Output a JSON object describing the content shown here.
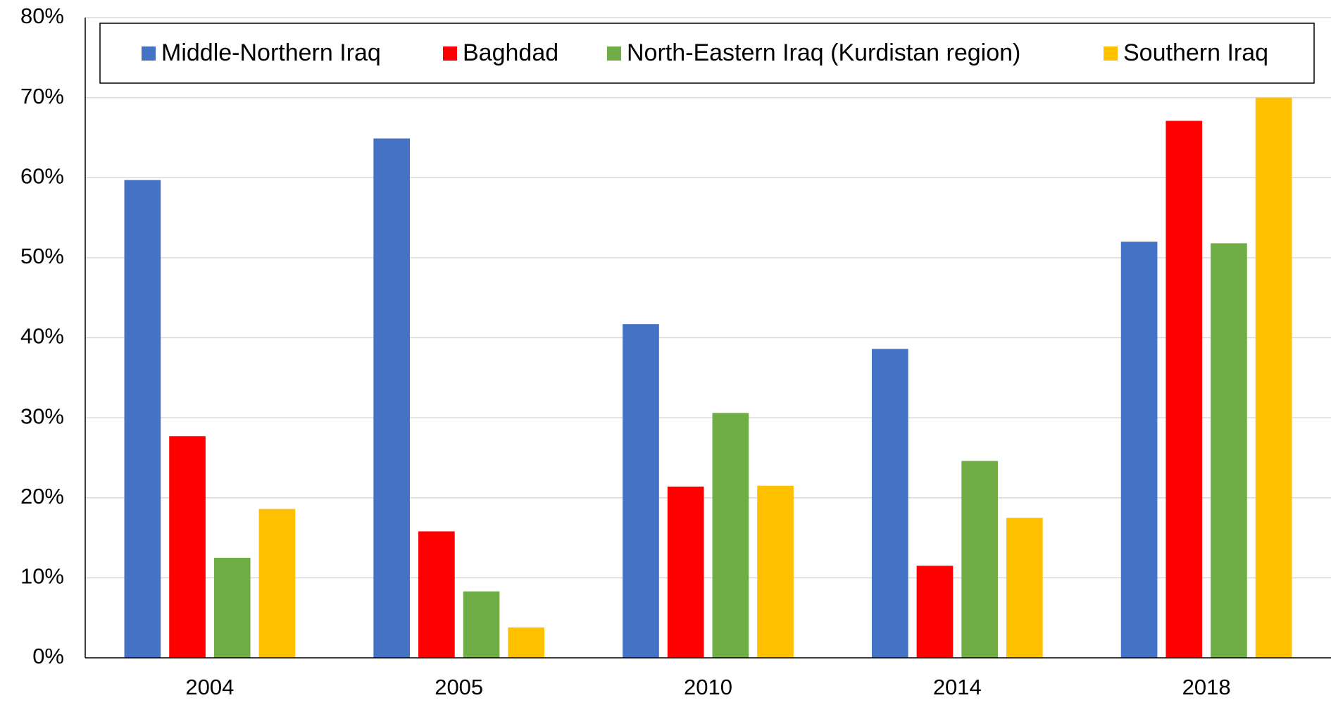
{
  "chart_data": {
    "type": "bar",
    "categories": [
      "2004",
      "2005",
      "2010",
      "2014",
      "2018"
    ],
    "series": [
      {
        "name": "Middle-Northern Iraq",
        "color": "#4472c4",
        "values": [
          59.7,
          64.9,
          41.7,
          38.6,
          52.0
        ]
      },
      {
        "name": "Baghdad",
        "color": "#ff0000",
        "values": [
          27.7,
          15.8,
          21.4,
          11.5,
          67.1
        ]
      },
      {
        "name": "North-Eastern Iraq (Kurdistan region)",
        "color": "#70ad47",
        "values": [
          12.5,
          8.3,
          30.6,
          24.6,
          51.8
        ]
      },
      {
        "name": "Southern Iraq",
        "color": "#ffc000",
        "values": [
          18.6,
          3.8,
          21.5,
          17.5,
          70.0
        ]
      }
    ],
    "ylim": [
      0,
      80
    ],
    "yticks": [
      {
        "value": 0,
        "label": "0%"
      },
      {
        "value": 10,
        "label": "10%"
      },
      {
        "value": 20,
        "label": "20%"
      },
      {
        "value": 30,
        "label": "30%"
      },
      {
        "value": 40,
        "label": "40%"
      },
      {
        "value": 50,
        "label": "50%"
      },
      {
        "value": 60,
        "label": "60%"
      },
      {
        "value": 70,
        "label": "70%"
      },
      {
        "value": 80,
        "label": "80%"
      }
    ],
    "grid": true,
    "legend": "top"
  }
}
